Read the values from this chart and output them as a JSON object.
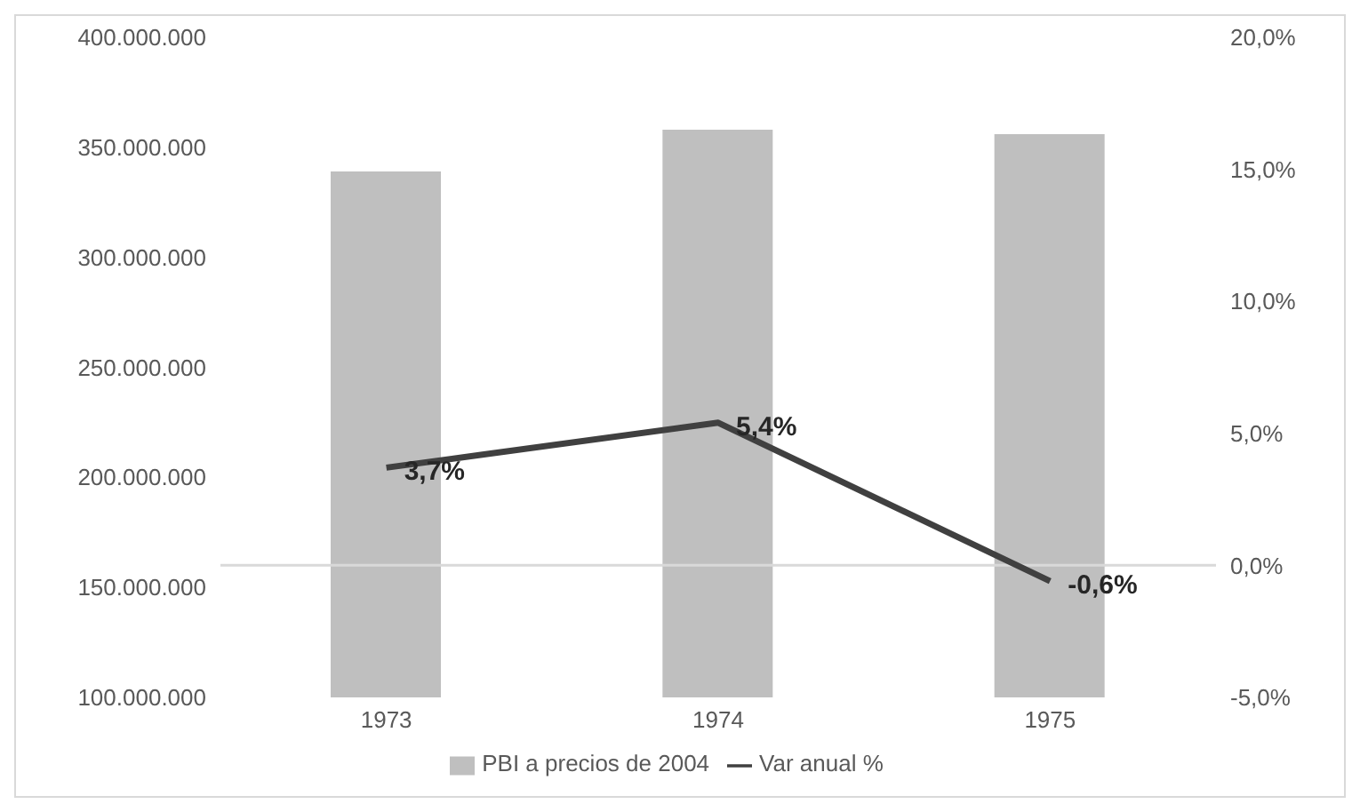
{
  "chart_data": {
    "type": "bar",
    "categories": [
      "1973",
      "1974",
      "1975"
    ],
    "series": [
      {
        "name": "PBI a precios de 2004",
        "color": "#bfbfbf",
        "values": [
          339000000,
          358000000,
          356000000
        ]
      },
      {
        "name": "Var anual %",
        "type": "line",
        "axis": "y2",
        "color": "#404040",
        "values": [
          3.7,
          5.4,
          -0.6
        ],
        "value_labels": [
          "3,7%",
          "5,4%",
          "-0,6%"
        ]
      }
    ],
    "ylim": [
      100000000,
      400000000
    ],
    "yticks": [
      {
        "value": 100000000,
        "label": "100.000.000"
      },
      {
        "value": 150000000,
        "label": "150.000.000"
      },
      {
        "value": 200000000,
        "label": "200.000.000"
      },
      {
        "value": 250000000,
        "label": "250.000.000"
      },
      {
        "value": 300000000,
        "label": "300.000.000"
      },
      {
        "value": 350000000,
        "label": "350.000.000"
      },
      {
        "value": 400000000,
        "label": "400.000.000"
      }
    ],
    "y2lim": [
      -5,
      20
    ],
    "y2ticks": [
      {
        "value": -5,
        "label": "-5,0%"
      },
      {
        "value": 0,
        "label": "0,0%"
      },
      {
        "value": 5,
        "label": "5,0%"
      },
      {
        "value": 10,
        "label": "10,0%"
      },
      {
        "value": 15,
        "label": "15,0%"
      },
      {
        "value": 20,
        "label": "20,0%"
      }
    ],
    "ref_lines": [
      {
        "axis": "y2",
        "value": 0,
        "color": "#d9d9d9"
      }
    ],
    "grid": false,
    "legend": "bottom",
    "marker": "none",
    "line_style": "solid"
  }
}
